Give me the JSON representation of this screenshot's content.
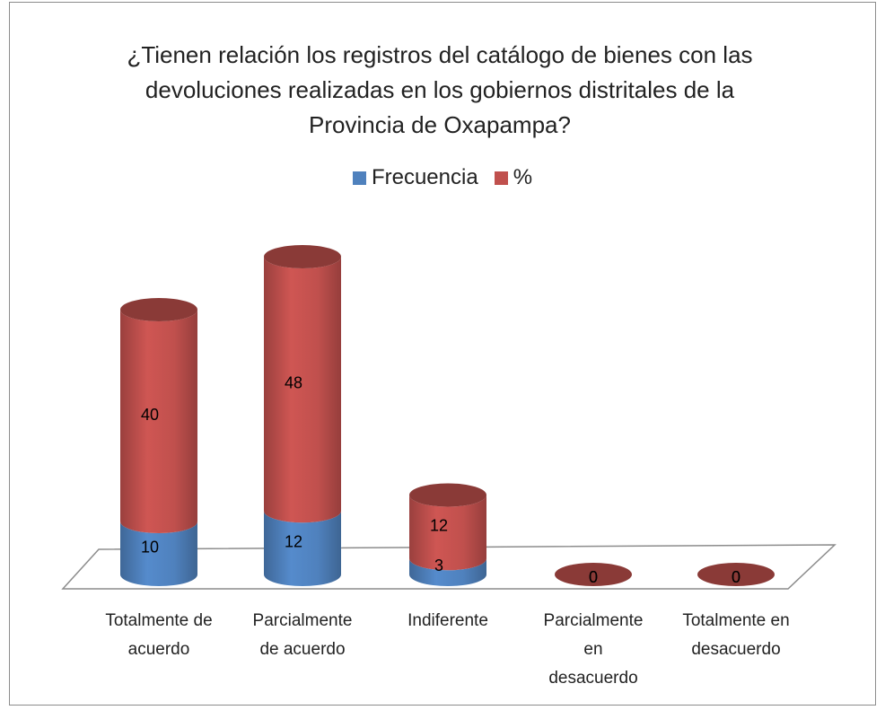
{
  "chart_data": {
    "type": "bar",
    "stacked": true,
    "three_d": true,
    "title": "¿Tienen relación los registros del catálogo de bienes con las devoluciones realizadas en los gobiernos distritales de la Provincia de Oxapampa?",
    "categories": [
      "Totalmente de acuerdo",
      "Parcialmente de acuerdo",
      "Indiferente",
      "Parcialmente en desacuerdo",
      "Totalmente en desacuerdo"
    ],
    "series": [
      {
        "name": "Frecuencia",
        "color": "#4f81bd",
        "values": [
          10,
          12,
          3,
          0,
          0
        ]
      },
      {
        "name": "%",
        "color": "#c0504d",
        "values": [
          40,
          48,
          12,
          0,
          0
        ]
      }
    ],
    "legend": "top"
  }
}
